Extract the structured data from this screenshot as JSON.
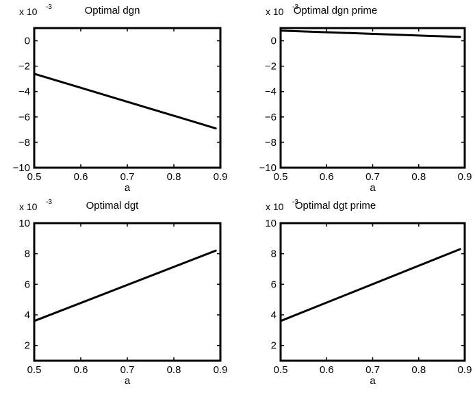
{
  "chart_data": [
    {
      "type": "line",
      "title": "Optimal dgn",
      "xlabel": "a",
      "ylabel": "",
      "y_multiplier": "x 10",
      "y_multiplier_exp": "-3",
      "xlim": [
        0.5,
        0.9
      ],
      "ylim": [
        -10,
        1
      ],
      "xticks": [
        0.5,
        0.6,
        0.7,
        0.8,
        0.9
      ],
      "xtick_labels": [
        "0.5",
        "0.6",
        "0.7",
        "0.8",
        "0.9"
      ],
      "yticks": [
        -10,
        -8,
        -6,
        -4,
        -2,
        0
      ],
      "ytick_labels": [
        "−10",
        "−8",
        "−6",
        "−4",
        "−2",
        "0"
      ],
      "series": [
        {
          "x": [
            0.5,
            0.89
          ],
          "y": [
            -2.6,
            -6.9
          ]
        }
      ]
    },
    {
      "type": "line",
      "title": "Optimal dgn prime",
      "xlabel": "a",
      "ylabel": "",
      "y_multiplier": "x 10",
      "y_multiplier_exp": "-3",
      "xlim": [
        0.5,
        0.9
      ],
      "ylim": [
        -10,
        1
      ],
      "xticks": [
        0.5,
        0.6,
        0.7,
        0.8,
        0.9
      ],
      "xtick_labels": [
        "0.5",
        "0.6",
        "0.7",
        "0.8",
        "0.9"
      ],
      "yticks": [
        -10,
        -8,
        -6,
        -4,
        -2,
        0
      ],
      "ytick_labels": [
        "−10",
        "−8",
        "−6",
        "−4",
        "−2",
        "0"
      ],
      "series": [
        {
          "x": [
            0.5,
            0.89
          ],
          "y": [
            0.8,
            0.3
          ]
        }
      ]
    },
    {
      "type": "line",
      "title": "Optimal dgt",
      "xlabel": "a",
      "ylabel": "",
      "y_multiplier": "x 10",
      "y_multiplier_exp": "-3",
      "xlim": [
        0.5,
        0.9
      ],
      "ylim": [
        1,
        10
      ],
      "xticks": [
        0.5,
        0.6,
        0.7,
        0.8,
        0.9
      ],
      "xtick_labels": [
        "0.5",
        "0.6",
        "0.7",
        "0.8",
        "0.9"
      ],
      "yticks": [
        2,
        4,
        6,
        8,
        10
      ],
      "ytick_labels": [
        "2",
        "4",
        "6",
        "8",
        "10"
      ],
      "series": [
        {
          "x": [
            0.5,
            0.89
          ],
          "y": [
            3.6,
            8.2
          ]
        }
      ]
    },
    {
      "type": "line",
      "title": "Optimal dgt prime",
      "xlabel": "a",
      "ylabel": "",
      "y_multiplier": "x 10",
      "y_multiplier_exp": "-3",
      "xlim": [
        0.5,
        0.9
      ],
      "ylim": [
        1,
        10
      ],
      "xticks": [
        0.5,
        0.6,
        0.7,
        0.8,
        0.9
      ],
      "xtick_labels": [
        "0.5",
        "0.6",
        "0.7",
        "0.8",
        "0.9"
      ],
      "yticks": [
        2,
        4,
        6,
        8,
        10
      ],
      "ytick_labels": [
        "2",
        "4",
        "6",
        "8",
        "10"
      ],
      "series": [
        {
          "x": [
            0.5,
            0.89
          ],
          "y": [
            3.6,
            8.3
          ]
        }
      ]
    }
  ]
}
